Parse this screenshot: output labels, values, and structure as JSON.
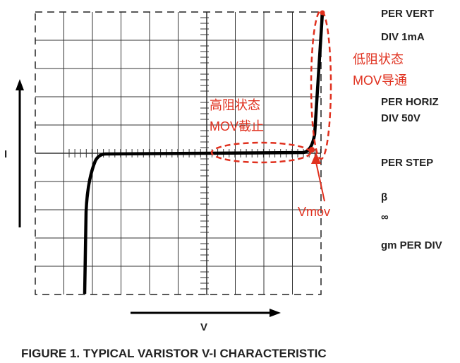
{
  "scale_labels": [
    "PER VERT",
    "DIV 1mA",
    "PER HORIZ",
    "DIV 50V",
    "PER STEP",
    "β",
    "∞",
    "gm PER DIV"
  ],
  "annotations": {
    "low_resistance": [
      "低阻状态",
      "MOV导通"
    ],
    "high_resistance": [
      "高阻状态",
      "MOV截止"
    ],
    "vmov": "Vmov"
  },
  "axes": {
    "y": "I",
    "x": "V"
  },
  "caption": "FIGURE 1. TYPICAL VARISTOR V-I CHARACTERISTIC"
}
